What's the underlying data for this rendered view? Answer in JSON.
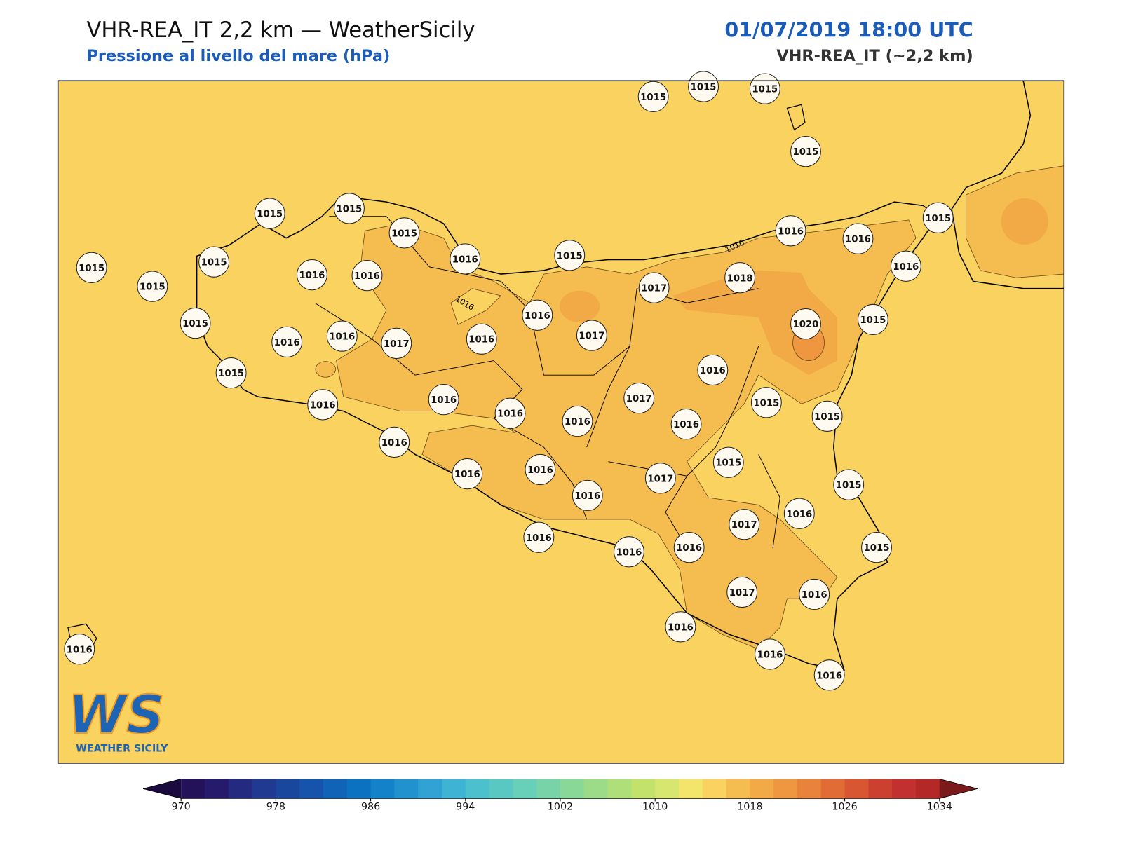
{
  "header": {
    "title": "VHR-REA_IT 2,2 km — WeatherSicily",
    "subtitle": "Pressione al livello del mare (hPa)",
    "datetime": "01/07/2019 18:00 UTC",
    "model": "VHR-REA_IT (~2,2 km)"
  },
  "stations": [
    1015,
    1015,
    1015,
    1015,
    1015,
    1015,
    1015,
    1016,
    1015,
    1016,
    1016,
    1015,
    1015,
    1015,
    1015,
    1016,
    1016,
    1017,
    1018,
    1016,
    1016,
    1015,
    1020,
    1015,
    1016,
    1016,
    1017,
    1016,
    1017,
    1015,
    1016,
    1017,
    1016,
    1016,
    1016,
    1015,
    1015,
    1016,
    1016,
    1016,
    1015,
    1016,
    1016,
    1017,
    1015,
    1016,
    1016,
    1017,
    1016,
    1016,
    1016,
    1015,
    1017,
    1016,
    1016,
    1016,
    1016,
    1016
  ],
  "contour_labels": [
    1016,
    1016
  ],
  "logo": {
    "mark": "WS",
    "text": "WEATHER SICILY"
  },
  "colorbar": {
    "ticks": [
      970,
      978,
      986,
      994,
      1002,
      1010,
      1018,
      1026,
      1034
    ],
    "colors": [
      "#23125a",
      "#261a6c",
      "#242a80",
      "#1f3a90",
      "#1a479e",
      "#1554aa",
      "#1063b6",
      "#0b72c1",
      "#1382c9",
      "#2292cf",
      "#31a2d3",
      "#3fb3d3",
      "#4cc0cc",
      "#5ac8c2",
      "#68cfb8",
      "#78d4a8",
      "#8ad898",
      "#9cdc88",
      "#aedf78",
      "#c2e26c",
      "#d6e66e",
      "#f3e46c",
      "#f9d260",
      "#f5bd50",
      "#f2aa47",
      "#ee9740",
      "#e9823a",
      "#e26c35",
      "#d85632",
      "#cc402f",
      "#c23030",
      "#b52828"
    ],
    "under_color": "#1a0a3e",
    "over_color": "#7a1a1a"
  }
}
